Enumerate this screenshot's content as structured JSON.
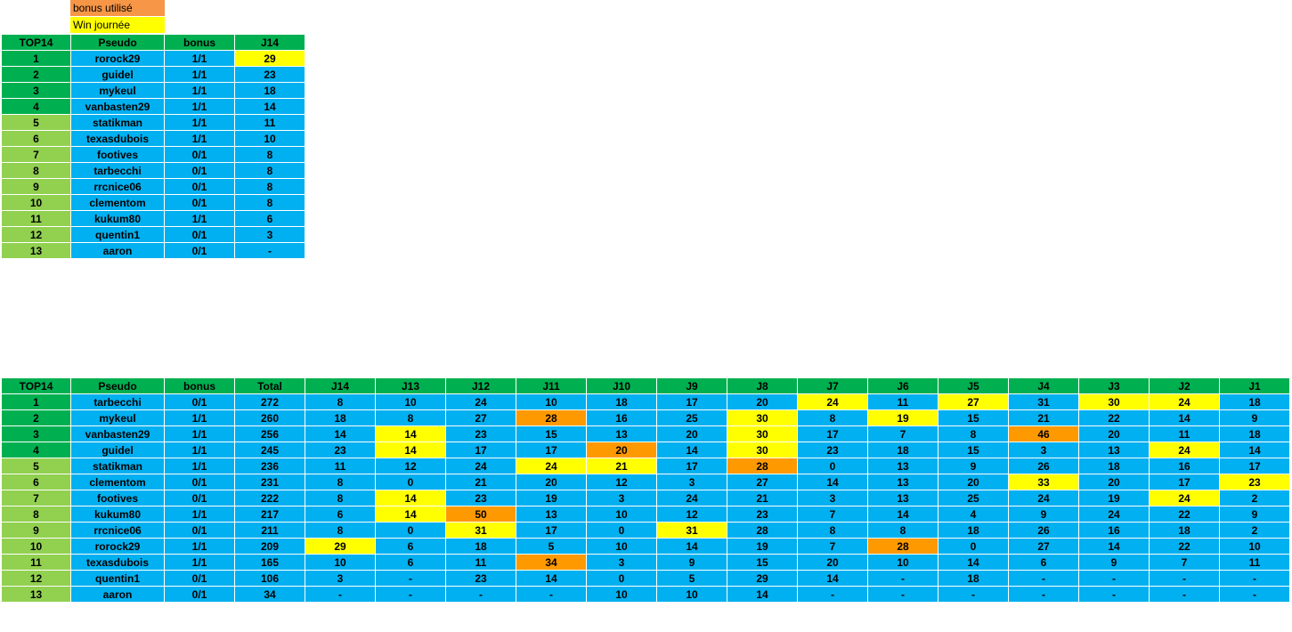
{
  "legend": {
    "bonus_label": "bonus utilisé",
    "win_label": "Win journée",
    "bonus_color": "#f79646",
    "win_color": "#ffff00"
  },
  "colors": {
    "header": "#00b050",
    "top4": "#00b050",
    "rank_rest": "#92d050",
    "cell": "#00b0f0",
    "win": "#ffff00",
    "bonus": "#ff9900"
  },
  "top_table": {
    "headers": [
      "TOP14",
      "Pseudo",
      "bonus",
      "J14"
    ],
    "rows": [
      {
        "rank": "1",
        "pseudo": "rorock29",
        "bonus": "1/1",
        "j14": "29",
        "win": true
      },
      {
        "rank": "2",
        "pseudo": "guidel",
        "bonus": "1/1",
        "j14": "23"
      },
      {
        "rank": "3",
        "pseudo": "mykeul",
        "bonus": "1/1",
        "j14": "18"
      },
      {
        "rank": "4",
        "pseudo": "vanbasten29",
        "bonus": "1/1",
        "j14": "14"
      },
      {
        "rank": "5",
        "pseudo": "statikman",
        "bonus": "1/1",
        "j14": "11"
      },
      {
        "rank": "6",
        "pseudo": "texasdubois",
        "bonus": "1/1",
        "j14": "10"
      },
      {
        "rank": "7",
        "pseudo": "footives",
        "bonus": "0/1",
        "j14": "8"
      },
      {
        "rank": "8",
        "pseudo": "tarbecchi",
        "bonus": "0/1",
        "j14": "8"
      },
      {
        "rank": "9",
        "pseudo": "rrcnice06",
        "bonus": "0/1",
        "j14": "8"
      },
      {
        "rank": "10",
        "pseudo": "clementom",
        "bonus": "0/1",
        "j14": "8"
      },
      {
        "rank": "11",
        "pseudo": "kukum80",
        "bonus": "1/1",
        "j14": "6"
      },
      {
        "rank": "12",
        "pseudo": "quentin1",
        "bonus": "0/1",
        "j14": "3"
      },
      {
        "rank": "13",
        "pseudo": "aaron",
        "bonus": "0/1",
        "j14": "-"
      }
    ]
  },
  "main_table": {
    "headers": [
      "TOP14",
      "Pseudo",
      "bonus",
      "Total",
      "J14",
      "J13",
      "J12",
      "J11",
      "J10",
      "J9",
      "J8",
      "J7",
      "J6",
      "J5",
      "J4",
      "J3",
      "J2",
      "J1"
    ],
    "rows": [
      {
        "rank": "1",
        "pseudo": "tarbecchi",
        "bonus": "0/1",
        "total": "272",
        "scores": [
          "8",
          "10",
          "24",
          "10",
          "18",
          "17",
          "20",
          "24",
          "11",
          "27",
          "31",
          "30",
          "24",
          "18"
        ],
        "marks": [
          "",
          "",
          "",
          "",
          "",
          "",
          "",
          "win",
          "",
          "win",
          "",
          "win",
          "win",
          ""
        ]
      },
      {
        "rank": "2",
        "pseudo": "mykeul",
        "bonus": "1/1",
        "total": "260",
        "scores": [
          "18",
          "8",
          "27",
          "28",
          "16",
          "25",
          "30",
          "8",
          "19",
          "15",
          "21",
          "22",
          "14",
          "9"
        ],
        "marks": [
          "",
          "",
          "",
          "bonus",
          "",
          "",
          "win",
          "",
          "win",
          "",
          "",
          "",
          "",
          ""
        ]
      },
      {
        "rank": "3",
        "pseudo": "vanbasten29",
        "bonus": "1/1",
        "total": "256",
        "scores": [
          "14",
          "14",
          "23",
          "15",
          "13",
          "20",
          "30",
          "17",
          "7",
          "8",
          "46",
          "20",
          "11",
          "18"
        ],
        "marks": [
          "",
          "win",
          "",
          "",
          "",
          "",
          "win",
          "",
          "",
          "",
          "bonus",
          "",
          "",
          ""
        ]
      },
      {
        "rank": "4",
        "pseudo": "guidel",
        "bonus": "1/1",
        "total": "245",
        "scores": [
          "23",
          "14",
          "17",
          "17",
          "20",
          "14",
          "30",
          "23",
          "18",
          "15",
          "3",
          "13",
          "24",
          "14"
        ],
        "marks": [
          "",
          "win",
          "",
          "",
          "bonus",
          "",
          "win",
          "",
          "",
          "",
          "",
          "",
          "win",
          ""
        ]
      },
      {
        "rank": "5",
        "pseudo": "statikman",
        "bonus": "1/1",
        "total": "236",
        "scores": [
          "11",
          "12",
          "24",
          "24",
          "21",
          "17",
          "28",
          "0",
          "13",
          "9",
          "26",
          "18",
          "16",
          "17"
        ],
        "marks": [
          "",
          "",
          "",
          "win",
          "win",
          "",
          "bonus",
          "",
          "",
          "",
          "",
          "",
          "",
          ""
        ]
      },
      {
        "rank": "6",
        "pseudo": "clementom",
        "bonus": "0/1",
        "total": "231",
        "scores": [
          "8",
          "0",
          "21",
          "20",
          "12",
          "3",
          "27",
          "14",
          "13",
          "20",
          "33",
          "20",
          "17",
          "23"
        ],
        "marks": [
          "",
          "",
          "",
          "",
          "",
          "",
          "",
          "",
          "",
          "",
          "win",
          "",
          "",
          "win"
        ]
      },
      {
        "rank": "7",
        "pseudo": "footives",
        "bonus": "0/1",
        "total": "222",
        "scores": [
          "8",
          "14",
          "23",
          "19",
          "3",
          "24",
          "21",
          "3",
          "13",
          "25",
          "24",
          "19",
          "24",
          "2"
        ],
        "marks": [
          "",
          "win",
          "",
          "",
          "",
          "",
          "",
          "",
          "",
          "",
          "",
          "",
          "win",
          ""
        ]
      },
      {
        "rank": "8",
        "pseudo": "kukum80",
        "bonus": "1/1",
        "total": "217",
        "scores": [
          "6",
          "14",
          "50",
          "13",
          "10",
          "12",
          "23",
          "7",
          "14",
          "4",
          "9",
          "24",
          "22",
          "9"
        ],
        "marks": [
          "",
          "win",
          "bonus",
          "",
          "",
          "",
          "",
          "",
          "",
          "",
          "",
          "",
          "",
          ""
        ]
      },
      {
        "rank": "9",
        "pseudo": "rrcnice06",
        "bonus": "0/1",
        "total": "211",
        "scores": [
          "8",
          "0",
          "31",
          "17",
          "0",
          "31",
          "28",
          "8",
          "8",
          "18",
          "26",
          "16",
          "18",
          "2"
        ],
        "marks": [
          "",
          "",
          "win",
          "",
          "",
          "win",
          "",
          "",
          "",
          "",
          "",
          "",
          "",
          ""
        ]
      },
      {
        "rank": "10",
        "pseudo": "rorock29",
        "bonus": "1/1",
        "total": "209",
        "scores": [
          "29",
          "6",
          "18",
          "5",
          "10",
          "14",
          "19",
          "7",
          "28",
          "0",
          "27",
          "14",
          "22",
          "10"
        ],
        "marks": [
          "win",
          "",
          "",
          "",
          "",
          "",
          "",
          "",
          "bonus",
          "",
          "",
          "",
          "",
          ""
        ]
      },
      {
        "rank": "11",
        "pseudo": "texasdubois",
        "bonus": "1/1",
        "total": "165",
        "scores": [
          "10",
          "6",
          "11",
          "34",
          "3",
          "9",
          "15",
          "20",
          "10",
          "14",
          "6",
          "9",
          "7",
          "11"
        ],
        "marks": [
          "",
          "",
          "",
          "bonus",
          "",
          "",
          "",
          "",
          "",
          "",
          "",
          "",
          "",
          ""
        ]
      },
      {
        "rank": "12",
        "pseudo": "quentin1",
        "bonus": "0/1",
        "total": "106",
        "scores": [
          "3",
          "-",
          "23",
          "14",
          "0",
          "5",
          "29",
          "14",
          "-",
          "18",
          "-",
          "-",
          "-",
          "-"
        ],
        "marks": [
          "",
          "",
          "",
          "",
          "",
          "",
          "",
          "",
          "",
          "",
          "",
          "",
          "",
          ""
        ]
      },
      {
        "rank": "13",
        "pseudo": "aaron",
        "bonus": "0/1",
        "total": "34",
        "scores": [
          "-",
          "-",
          "-",
          "-",
          "10",
          "10",
          "14",
          "-",
          "-",
          "-",
          "-",
          "-",
          "-",
          "-"
        ],
        "marks": [
          "",
          "",
          "",
          "",
          "",
          "",
          "",
          "",
          "",
          "",
          "",
          "",
          "",
          ""
        ]
      }
    ]
  }
}
